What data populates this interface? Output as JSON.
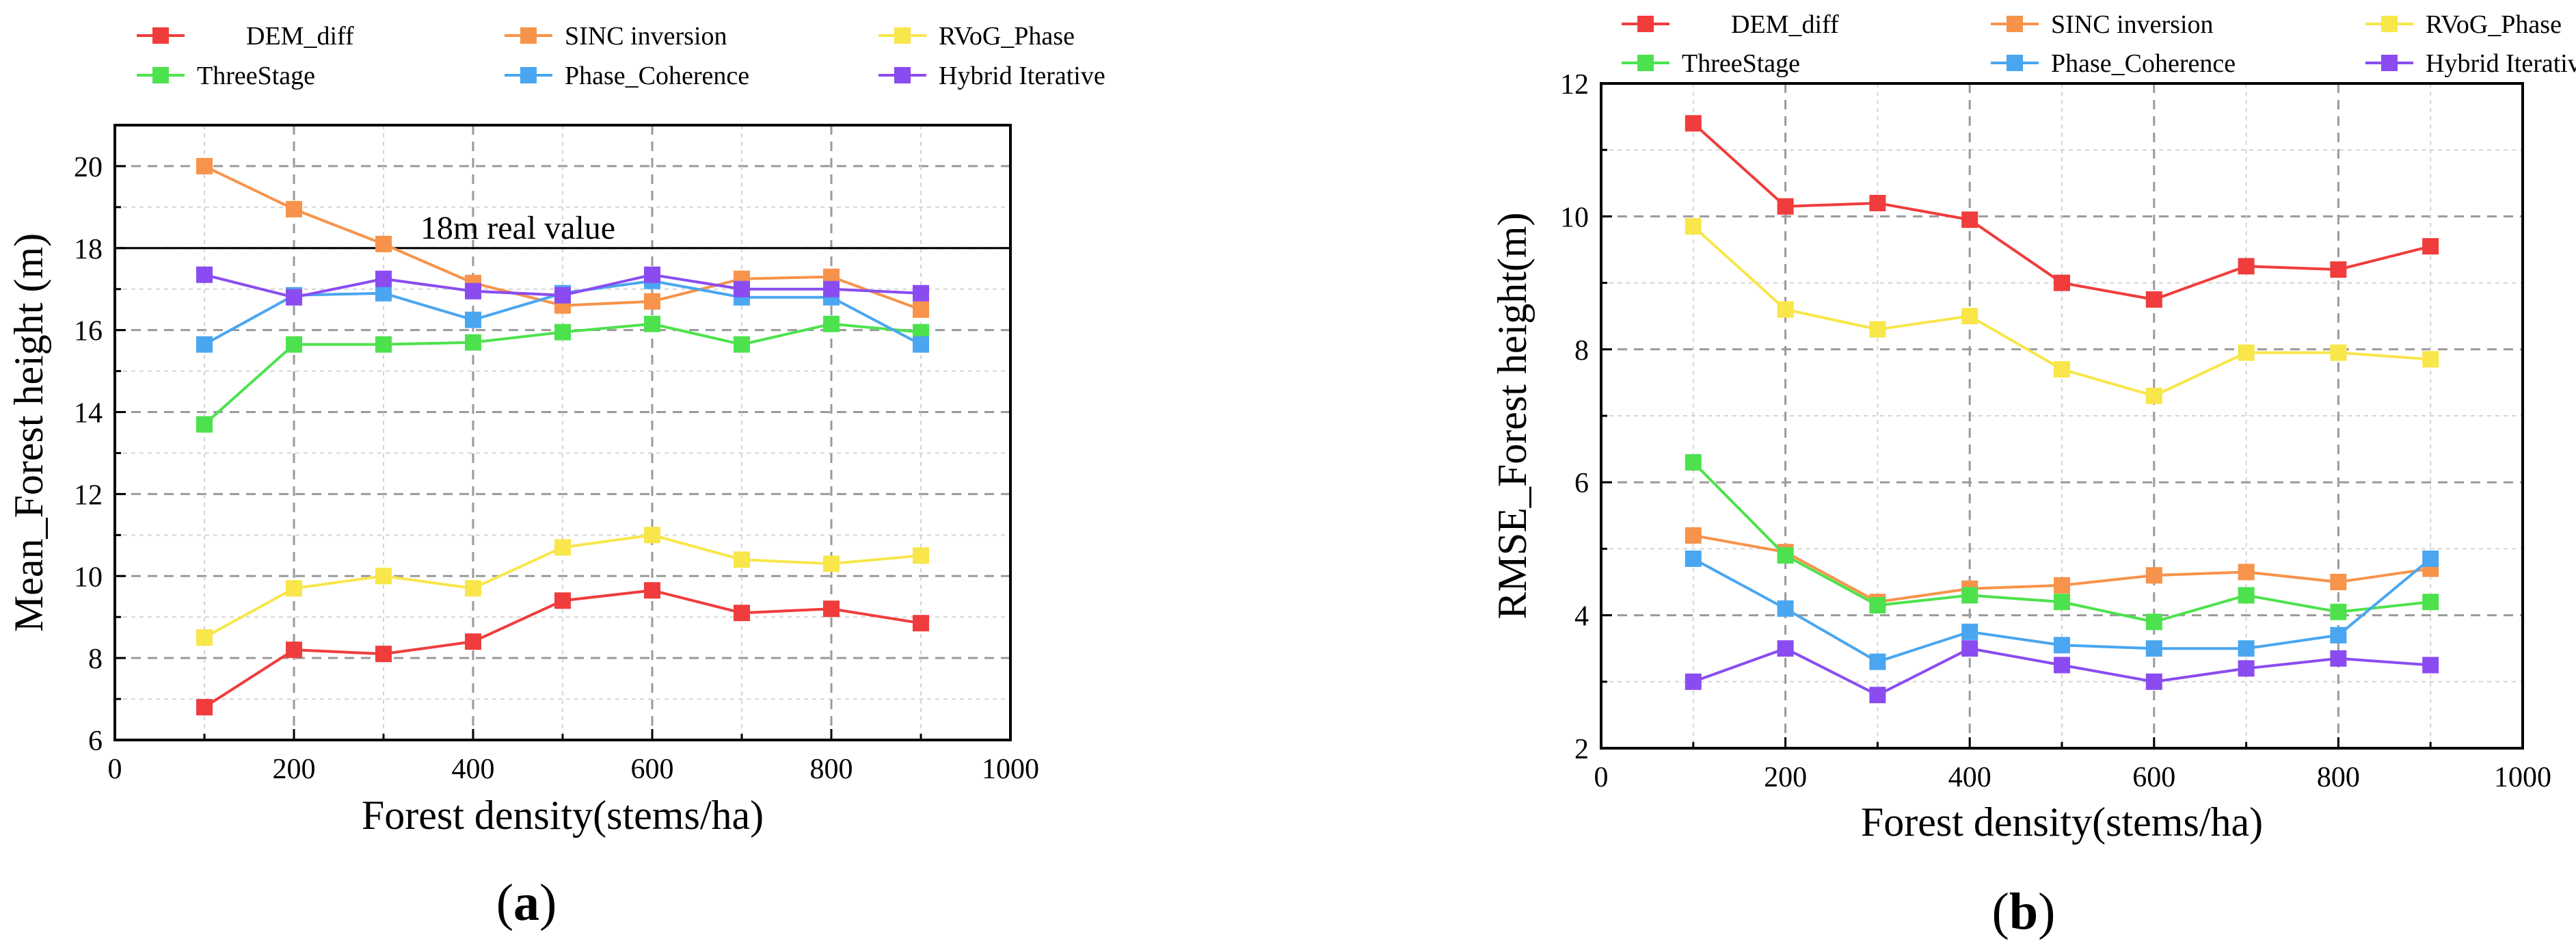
{
  "chart_data": [
    {
      "type": "line",
      "panel_label": "(a)",
      "xlabel": "Forest density(stems/ha)",
      "ylabel": "Mean_Forest height (m)",
      "xlim": [
        0,
        1000
      ],
      "ylim": [
        6,
        21
      ],
      "xticks": [
        0,
        200,
        400,
        600,
        800,
        1000
      ],
      "yticks": [
        6,
        8,
        10,
        12,
        14,
        16,
        18,
        20
      ],
      "grid": "dashed",
      "x": [
        100,
        200,
        300,
        400,
        500,
        600,
        700,
        800,
        900
      ],
      "reference_line": {
        "y": 18,
        "label": "18m real value"
      },
      "series": [
        {
          "name": "DEM_diff",
          "color": "#f03c3c",
          "values": [
            6.8,
            8.2,
            8.1,
            8.4,
            9.4,
            9.65,
            9.1,
            9.2,
            8.85
          ]
        },
        {
          "name": "SINC inversion",
          "color": "#f7934a",
          "values": [
            20.0,
            18.95,
            18.1,
            17.15,
            16.6,
            16.7,
            17.25,
            17.3,
            16.5
          ]
        },
        {
          "name": "RVoG_Phase",
          "color": "#f8e64a",
          "values": [
            8.5,
            9.7,
            10.0,
            9.7,
            10.7,
            11.0,
            10.4,
            10.3,
            10.5
          ]
        },
        {
          "name": "ThreeStage",
          "color": "#4de24d",
          "values": [
            13.7,
            15.65,
            15.65,
            15.7,
            15.95,
            16.15,
            15.65,
            16.15,
            15.95
          ]
        },
        {
          "name": "Phase_Coherence",
          "color": "#4aa6f0",
          "values": [
            15.65,
            16.85,
            16.9,
            16.25,
            16.9,
            17.2,
            16.8,
            16.8,
            15.65
          ]
        },
        {
          "name": "Hybrid Iterative",
          "color": "#8a4cf0",
          "values": [
            17.35,
            16.8,
            17.25,
            16.95,
            16.85,
            17.35,
            17.0,
            17.0,
            16.9
          ]
        }
      ]
    },
    {
      "type": "line",
      "panel_label": "(b)",
      "xlabel": "Forest density(stems/ha)",
      "ylabel": "RMSE_Forest height(m)",
      "xlim": [
        0,
        1000
      ],
      "ylim": [
        2,
        12
      ],
      "xticks": [
        0,
        200,
        400,
        600,
        800,
        1000
      ],
      "yticks": [
        2,
        4,
        6,
        8,
        10,
        12
      ],
      "grid": "dashed",
      "x": [
        100,
        200,
        300,
        400,
        500,
        600,
        700,
        800,
        900
      ],
      "series": [
        {
          "name": "DEM_diff",
          "color": "#f03c3c",
          "values": [
            11.4,
            10.15,
            10.2,
            9.95,
            9.0,
            8.75,
            9.25,
            9.2,
            9.55
          ]
        },
        {
          "name": "SINC inversion",
          "color": "#f7934a",
          "values": [
            5.2,
            4.95,
            4.2,
            4.4,
            4.45,
            4.6,
            4.65,
            4.5,
            4.7
          ]
        },
        {
          "name": "RVoG_Phase",
          "color": "#f8e64a",
          "values": [
            9.85,
            8.6,
            8.3,
            8.5,
            7.7,
            7.3,
            7.95,
            7.95,
            7.85
          ]
        },
        {
          "name": "ThreeStage",
          "color": "#4de24d",
          "values": [
            6.3,
            4.9,
            4.15,
            4.3,
            4.2,
            3.9,
            4.3,
            4.05,
            4.2
          ]
        },
        {
          "name": "Phase_Coherence",
          "color": "#4aa6f0",
          "values": [
            4.85,
            4.1,
            3.3,
            3.75,
            3.55,
            3.5,
            3.5,
            3.7,
            4.85
          ]
        },
        {
          "name": "Hybrid Iterative",
          "color": "#8a4cf0",
          "values": [
            3.0,
            3.5,
            2.8,
            3.5,
            3.25,
            3.0,
            3.2,
            3.35,
            3.25
          ]
        }
      ]
    }
  ]
}
